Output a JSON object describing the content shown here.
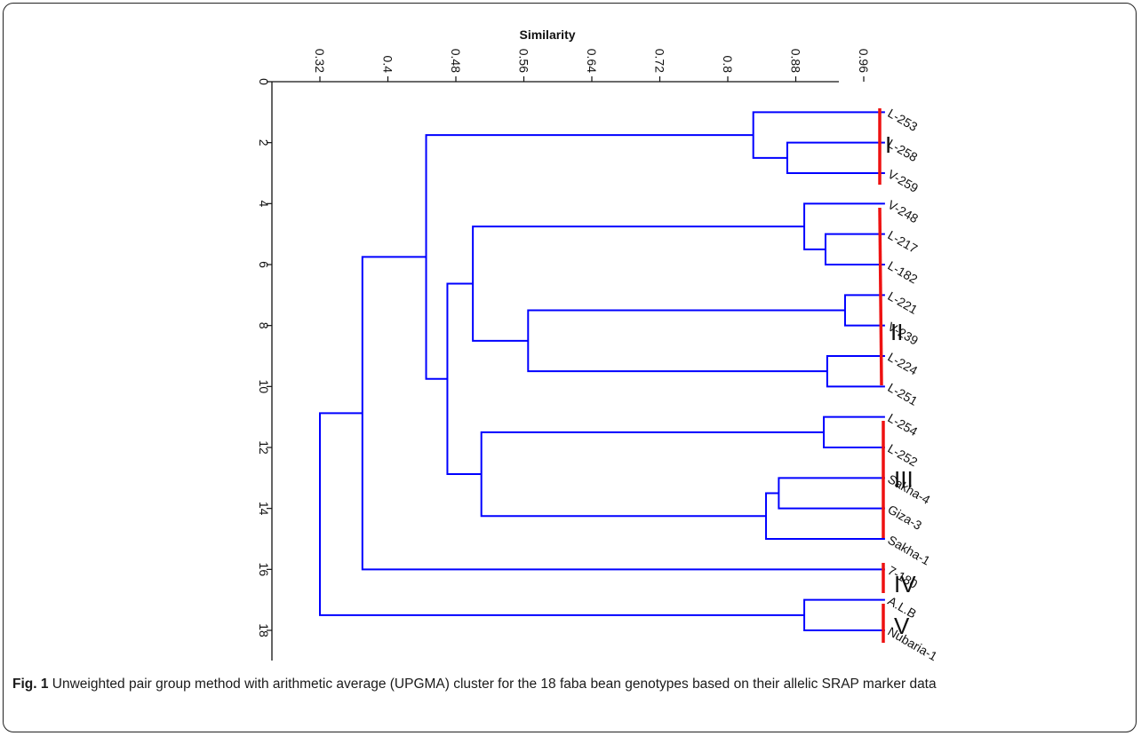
{
  "chart_data": {
    "type": "dendrogram",
    "title": "",
    "x_axis": {
      "label": "Similarity",
      "position": "top",
      "range": [
        0.25,
        1.02
      ],
      "ticks": [
        0.32,
        0.4,
        0.48,
        0.56,
        0.64,
        0.72,
        0.8,
        0.88,
        0.96
      ],
      "tick_labels": [
        "0.32",
        "0.4",
        "0.48",
        "0.56",
        "0.64",
        "0.72",
        "0.8",
        "0.88",
        "0.96"
      ]
    },
    "y_axis": {
      "label": "",
      "position": "left",
      "range": [
        0,
        19
      ],
      "ticks": [
        0,
        2,
        4,
        6,
        8,
        10,
        12,
        14,
        16,
        18
      ],
      "tick_labels": [
        "0",
        "2",
        "4",
        "6",
        "8",
        "10",
        "12",
        "14",
        "16",
        "18"
      ]
    },
    "leaves": [
      "L-253",
      "L-258",
      "V-259",
      "V-248",
      "L-217",
      "L-182",
      "L-221",
      "V-239",
      "L-224",
      "L-251",
      "L-254",
      "L-252",
      "Sakha-4",
      "Giza-3",
      "Sakha-1",
      "7-180",
      "A.L.B",
      "Nubaria-1"
    ],
    "merges": [
      {
        "id": "m1",
        "left": "leaf:L-258",
        "right": "leaf:V-259",
        "similarity": 0.87
      },
      {
        "id": "m2",
        "left": "leaf:L-253",
        "right": "m1",
        "similarity": 0.83
      },
      {
        "id": "m3",
        "left": "leaf:L-217",
        "right": "leaf:L-182",
        "similarity": 0.915
      },
      {
        "id": "m4",
        "left": "leaf:V-248",
        "right": "m3",
        "similarity": 0.89
      },
      {
        "id": "m5",
        "left": "leaf:L-221",
        "right": "leaf:V-239",
        "similarity": 0.938
      },
      {
        "id": "m6",
        "left": "leaf:L-224",
        "right": "leaf:L-251",
        "similarity": 0.917
      },
      {
        "id": "m7",
        "left": "m5",
        "right": "m6",
        "similarity": 0.565
      },
      {
        "id": "m8",
        "left": "m4",
        "right": "m7",
        "similarity": 0.5
      },
      {
        "id": "m9",
        "left": "leaf:L-254",
        "right": "leaf:L-252",
        "similarity": 0.913
      },
      {
        "id": "m10",
        "left": "leaf:Sakha-4",
        "right": "leaf:Giza-3",
        "similarity": 0.86
      },
      {
        "id": "m11",
        "left": "m10",
        "right": "leaf:Sakha-1",
        "similarity": 0.845
      },
      {
        "id": "m12",
        "left": "m9",
        "right": "m11",
        "similarity": 0.51
      },
      {
        "id": "m13",
        "left": "m8",
        "right": "m12",
        "similarity": 0.47
      },
      {
        "id": "m14",
        "left": "m2",
        "right": "m13",
        "similarity": 0.445
      },
      {
        "id": "m15",
        "left": "m14",
        "right": "leaf:7-180",
        "similarity": 0.37
      },
      {
        "id": "m16",
        "left": "leaf:A.L.B",
        "right": "leaf:Nubaria-1",
        "similarity": 0.89
      },
      {
        "id": "m17",
        "left": "m15",
        "right": "m16",
        "similarity": 0.32
      }
    ],
    "groups": [
      {
        "label": "I",
        "members": [
          "L-253",
          "L-258",
          "V-259"
        ]
      },
      {
        "label": "II",
        "members": [
          "V-248",
          "L-217",
          "L-182",
          "L-221",
          "V-239",
          "L-224",
          "L-251"
        ]
      },
      {
        "label": "III",
        "members": [
          "L-254",
          "L-252",
          "Sakha-4",
          "Giza-3",
          "Sakha-1"
        ]
      },
      {
        "label": "IV",
        "members": [
          "7-180"
        ]
      },
      {
        "label": "V",
        "members": [
          "A.L.B",
          "Nubaria-1"
        ]
      }
    ],
    "colors": {
      "branches": "#0000ff",
      "group_bars": "#ee1111",
      "axes": "#111111"
    }
  },
  "caption": {
    "label": "Fig. 1",
    "text": " Unweighted pair group method with arithmetic average (UPGMA) cluster for the 18 faba bean genotypes based on their allelic SRAP marker data"
  }
}
